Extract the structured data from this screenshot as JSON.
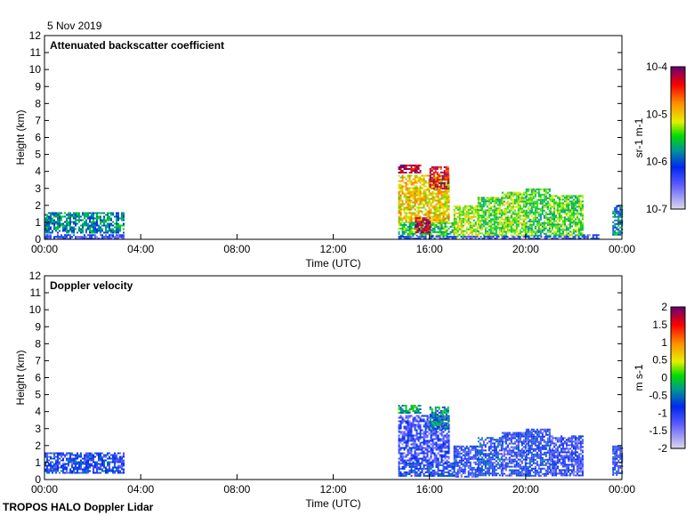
{
  "header": {
    "date": "5 Nov 2019"
  },
  "footer": {
    "instrument": "TROPOS HALO Doppler Lidar"
  },
  "chart_data": [
    {
      "type": "heatmap",
      "title": "Attenuated backscatter coefficient",
      "xlabel": "Time (UTC)",
      "ylabel": "Height (km)",
      "xlim": [
        0,
        24
      ],
      "ylim": [
        0,
        12
      ],
      "xticks": [
        "00:00",
        "04:00",
        "08:00",
        "12:00",
        "16:00",
        "20:00",
        "00:00"
      ],
      "yticks": [
        "0",
        "1",
        "2",
        "3",
        "4",
        "5",
        "6",
        "7",
        "8",
        "9",
        "10",
        "11",
        "12"
      ],
      "colorbar": {
        "label": "sr-1 m-1",
        "scale": "log10",
        "range": [
          -7,
          -4
        ],
        "ticks": [
          "10-7",
          "10-6",
          "10-5",
          "10-4"
        ]
      },
      "regions_note": "[t_start_h, t_end_h, h_bottom_km, h_top_km, log10_value]",
      "regions": [
        [
          0,
          3.3,
          0.4,
          1.6,
          -5.8
        ],
        [
          0,
          3.3,
          0,
          0.3,
          -6.3
        ],
        [
          14.7,
          15.6,
          3.9,
          4.4,
          -4.2
        ],
        [
          14.7,
          16.8,
          1.0,
          3.8,
          -5.0
        ],
        [
          14.7,
          17.0,
          0.2,
          1.0,
          -5.5
        ],
        [
          16.0,
          16.8,
          3.0,
          4.3,
          -4.3
        ],
        [
          15.4,
          16.0,
          0.4,
          1.3,
          -4.2
        ],
        [
          17.0,
          18.0,
          0.2,
          2.0,
          -5.2
        ],
        [
          18.0,
          19.0,
          0.2,
          2.5,
          -5.4
        ],
        [
          19.0,
          20.0,
          0.2,
          2.8,
          -5.3
        ],
        [
          20.0,
          21.0,
          0.2,
          3.0,
          -5.5
        ],
        [
          21.0,
          22.4,
          0.2,
          2.6,
          -5.4
        ],
        [
          14.7,
          22.4,
          0,
          0.2,
          -6.2
        ],
        [
          22.4,
          23.0,
          0,
          0.3,
          -6.3
        ],
        [
          23.6,
          24,
          0.3,
          2.0,
          -5.8
        ]
      ]
    },
    {
      "type": "heatmap",
      "title": "Doppler velocity",
      "xlabel": "Time (UTC)",
      "ylabel": "Height (km)",
      "xlim": [
        0,
        24
      ],
      "ylim": [
        0,
        12
      ],
      "xticks": [
        "00:00",
        "04:00",
        "08:00",
        "12:00",
        "16:00",
        "20:00",
        "00:00"
      ],
      "yticks": [
        "0",
        "1",
        "2",
        "3",
        "4",
        "5",
        "6",
        "7",
        "8",
        "9",
        "10",
        "11",
        "12"
      ],
      "colorbar": {
        "label": "m s-1",
        "scale": "linear",
        "range": [
          -2,
          2
        ],
        "ticks": [
          "-2",
          "-1.5",
          "-1",
          "-0.5",
          "0",
          "0.5",
          "1",
          "1.5",
          "2"
        ]
      },
      "regions_note": "[t_start_h, t_end_h, h_bottom_km, h_top_km, velocity_m_s]",
      "regions": [
        [
          0,
          3.3,
          0.4,
          1.6,
          -0.9
        ],
        [
          14.7,
          15.6,
          3.9,
          4.4,
          -0.2
        ],
        [
          14.7,
          16.8,
          1.0,
          3.8,
          -1.1
        ],
        [
          14.7,
          17.0,
          0.2,
          1.0,
          -0.9
        ],
        [
          16.0,
          16.8,
          3.0,
          4.3,
          -0.4
        ],
        [
          17.0,
          18.0,
          0.2,
          2.0,
          -1.0
        ],
        [
          18.0,
          19.0,
          0.2,
          2.5,
          -0.8
        ],
        [
          19.0,
          20.0,
          0.2,
          2.8,
          -1.0
        ],
        [
          20.0,
          21.0,
          0.2,
          3.0,
          -0.9
        ],
        [
          21.0,
          22.4,
          0.2,
          2.6,
          -1.1
        ],
        [
          23.6,
          24,
          0.3,
          2.0,
          -0.9
        ]
      ]
    }
  ]
}
